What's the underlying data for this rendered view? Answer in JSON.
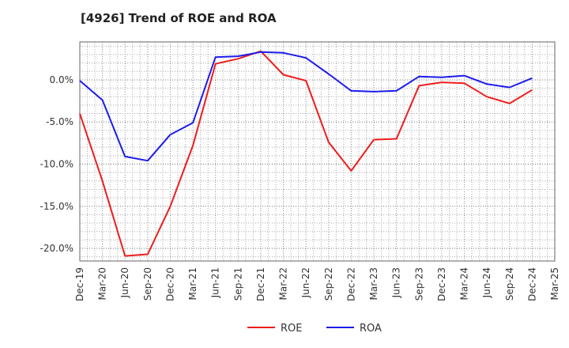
{
  "chart_data": {
    "type": "line",
    "title": "[4926]  Trend of ROE and ROA",
    "xlabel": "",
    "ylabel": "",
    "categories": [
      "Dec-19",
      "Mar-20",
      "Jun-20",
      "Sep-20",
      "Dec-20",
      "Mar-21",
      "Jun-21",
      "Sep-21",
      "Dec-21",
      "Mar-22",
      "Jun-22",
      "Sep-22",
      "Dec-22",
      "Mar-23",
      "Jun-23",
      "Sep-23",
      "Dec-23",
      "Mar-24",
      "Jun-24",
      "Sep-24",
      "Dec-24",
      "Mar-25"
    ],
    "ylim": [
      -21.5,
      4.5
    ],
    "yticks": [
      0,
      -5,
      -10,
      -15,
      -20
    ],
    "ytick_labels": [
      "0.0%",
      "-5.0%",
      "-10.0%",
      "-15.0%",
      "-20.0%"
    ],
    "grid": true,
    "legend_position": "bottom-center",
    "series": [
      {
        "name": "ROE",
        "color": "#ee1c1c",
        "values": [
          -4.0,
          -12.0,
          -20.9,
          -20.7,
          -15.0,
          -7.8,
          1.9,
          2.5,
          3.4,
          0.6,
          -0.1,
          -7.4,
          -10.8,
          -7.1,
          -7.0,
          -0.7,
          -0.3,
          -0.4,
          -2.0,
          -2.8,
          -1.2,
          null
        ]
      },
      {
        "name": "ROA",
        "color": "#1c1cee",
        "values": [
          -0.1,
          -2.4,
          -9.1,
          -9.6,
          -6.5,
          -5.1,
          2.7,
          2.8,
          3.3,
          3.2,
          2.6,
          0.7,
          -1.3,
          -1.4,
          -1.3,
          0.4,
          0.3,
          0.5,
          -0.5,
          -0.9,
          0.2,
          null
        ]
      }
    ]
  }
}
